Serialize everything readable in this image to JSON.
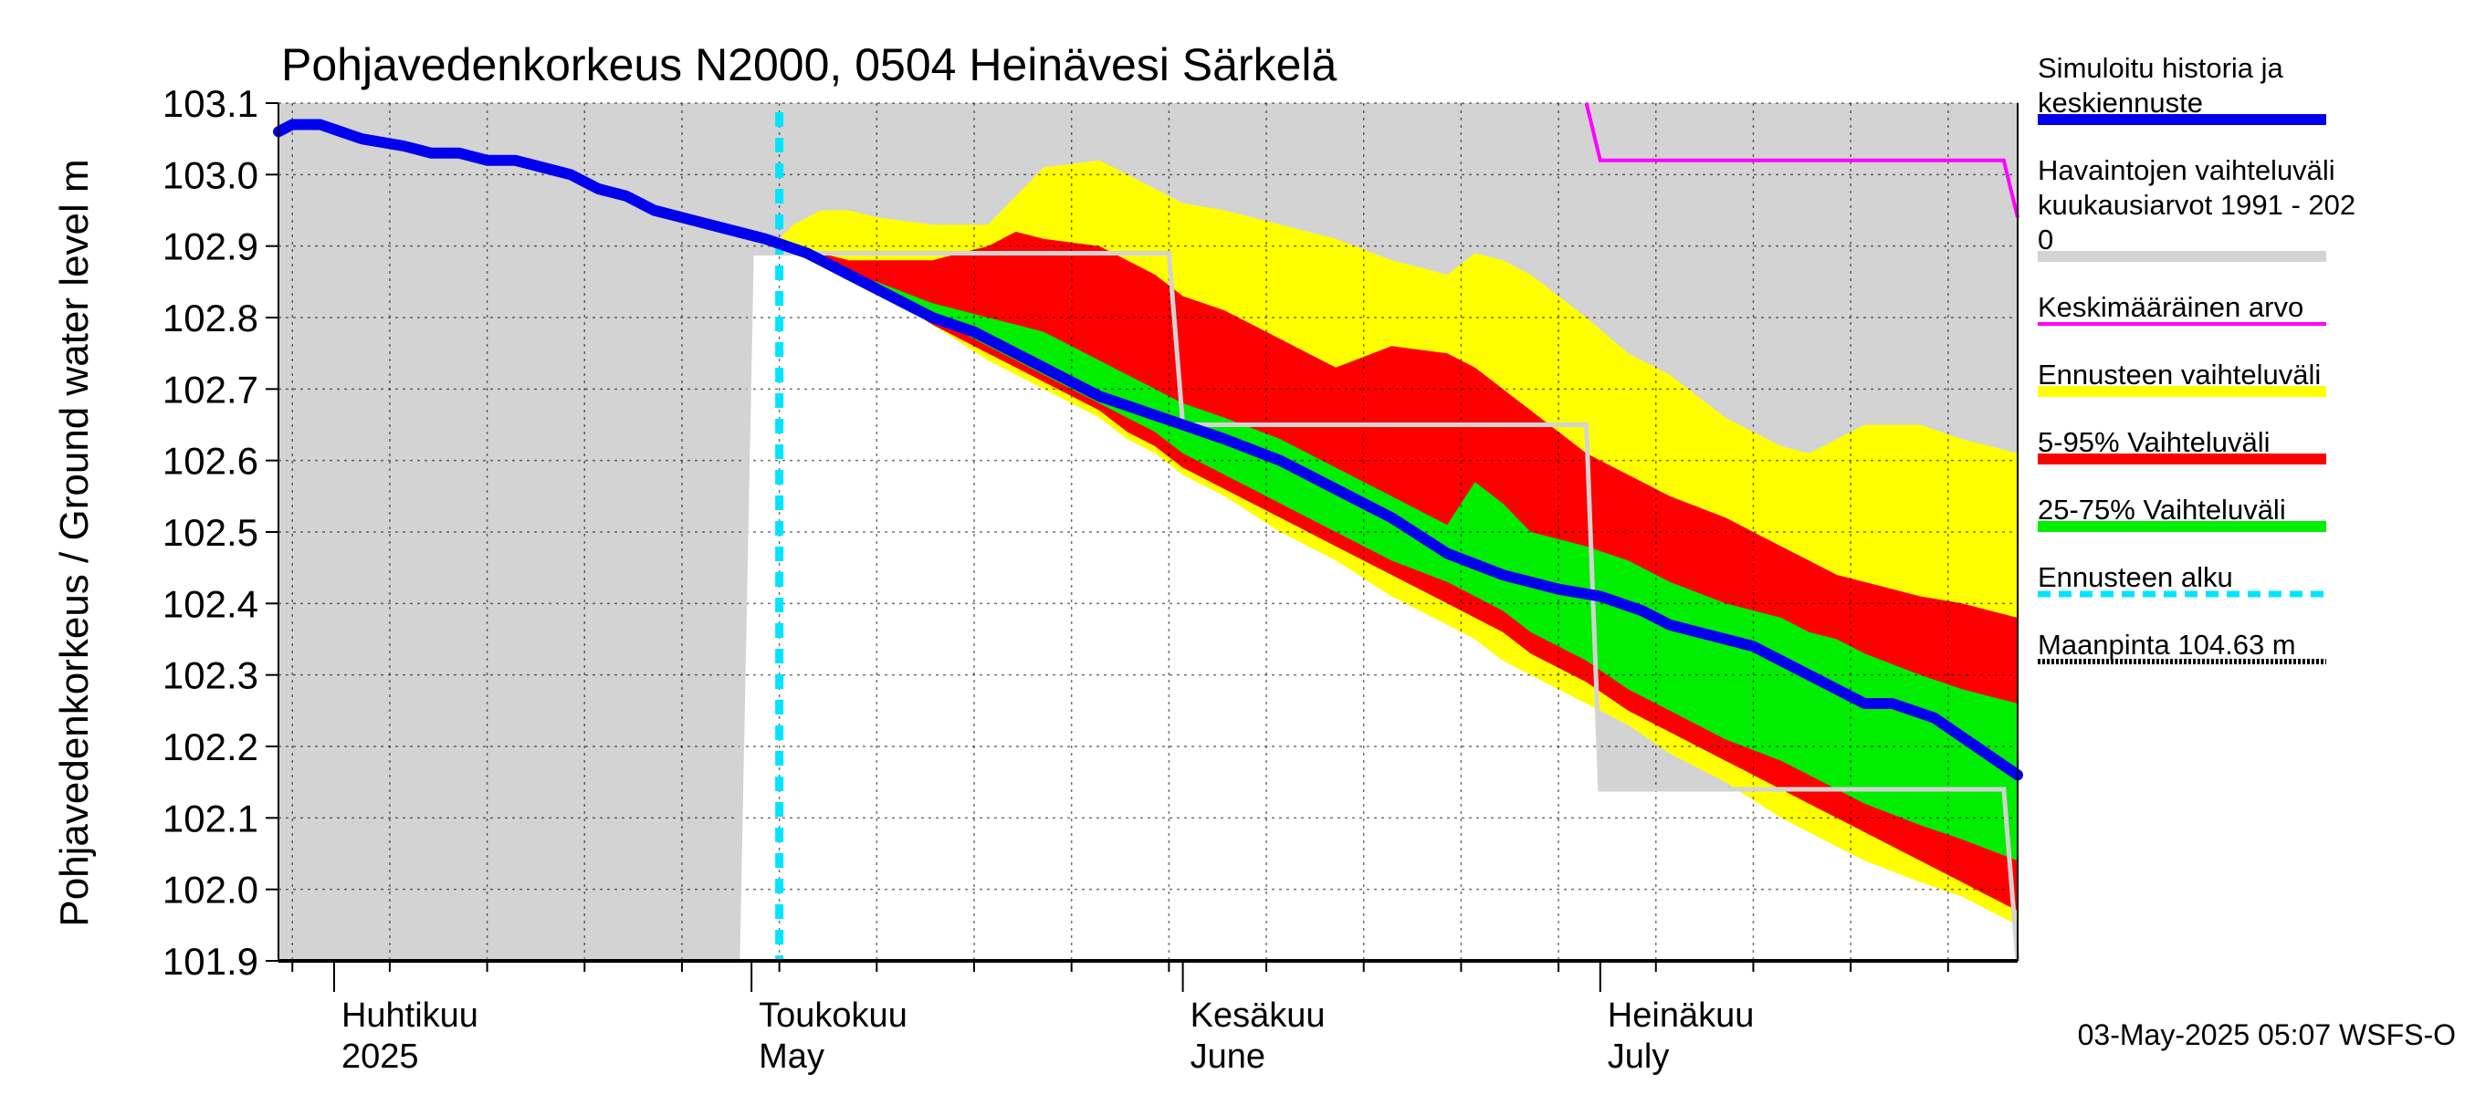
{
  "chart_data": {
    "type": "area",
    "title": "Pohjavedenkorkeus N2000, 0504 Heinävesi Särkelä",
    "ylabel": "Pohjavedenkorkeus / Ground water level   m",
    "ylim": [
      101.9,
      103.1
    ],
    "y_ticks": [
      "103.1",
      "103.0",
      "102.9",
      "102.8",
      "102.7",
      "102.6",
      "102.5",
      "102.4",
      "102.3",
      "102.2",
      "102.1",
      "102.0",
      "101.9"
    ],
    "x_range": [
      "2025-03-28",
      "2025-07-31"
    ],
    "grid": true,
    "month_labels": [
      {
        "date": "2025-04-01",
        "fi": "Huhtikuu",
        "en": "2025"
      },
      {
        "date": "2025-05-01",
        "fi": "Toukokuu",
        "en": "May"
      },
      {
        "date": "2025-06-01",
        "fi": "Kesäkuu",
        "en": "June"
      },
      {
        "date": "2025-07-01",
        "fi": "Heinäkuu",
        "en": "July"
      }
    ],
    "forecast_start": "2025-05-03",
    "colors": {
      "history": "#d3d3d3",
      "mean": "#ff00ff",
      "forecast_range": "#ffff00",
      "p5_95": "#ff0000",
      "p25_75": "#00ee00",
      "sim": "#0000ee",
      "forecast_start": "#00e5ff",
      "ground": "#000000"
    },
    "history_band": {
      "x": [
        "2025-03-28",
        "2025-04-30",
        "2025-05-01",
        "2025-05-31",
        "2025-06-01",
        "2025-06-30",
        "2025-07-01",
        "2025-07-30",
        "2025-07-31"
      ],
      "upper": [
        103.1,
        103.1,
        103.1,
        103.1,
        103.1,
        103.1,
        103.1,
        103.1,
        103.1
      ],
      "lower": [
        101.9,
        101.9,
        102.89,
        102.89,
        102.65,
        102.65,
        102.14,
        102.14,
        101.9
      ]
    },
    "mean_series": {
      "name": "Keskimääräinen arvo",
      "x": [
        "2025-06-30",
        "2025-07-01",
        "2025-07-30",
        "2025-07-31"
      ],
      "y": [
        103.1,
        103.02,
        103.02,
        102.94
      ]
    },
    "forecast_dates": [
      "2025-05-03",
      "2025-05-04",
      "2025-05-06",
      "2025-05-08",
      "2025-05-10",
      "2025-05-14",
      "2025-05-18",
      "2025-05-20",
      "2025-05-22",
      "2025-05-26",
      "2025-05-28",
      "2025-05-30",
      "2025-06-01",
      "2025-06-04",
      "2025-06-08",
      "2025-06-12",
      "2025-06-16",
      "2025-06-20",
      "2025-06-22",
      "2025-06-24",
      "2025-06-26",
      "2025-06-30",
      "2025-07-03",
      "2025-07-06",
      "2025-07-10",
      "2025-07-14",
      "2025-07-16",
      "2025-07-18",
      "2025-07-20",
      "2025-07-24",
      "2025-07-27",
      "2025-07-31"
    ],
    "forecast_range": {
      "name": "Ennusteen vaihteluväli",
      "upper": [
        102.91,
        102.93,
        102.95,
        102.95,
        102.94,
        102.93,
        102.93,
        102.97,
        103.01,
        103.02,
        103.0,
        102.98,
        102.96,
        102.95,
        102.93,
        102.91,
        102.88,
        102.86,
        102.89,
        102.88,
        102.86,
        102.8,
        102.75,
        102.72,
        102.66,
        102.62,
        102.61,
        102.63,
        102.65,
        102.65,
        102.63,
        102.61
      ],
      "lower": [
        102.91,
        102.9,
        102.88,
        102.86,
        102.84,
        102.79,
        102.74,
        102.72,
        102.7,
        102.66,
        102.63,
        102.61,
        102.58,
        102.55,
        102.5,
        102.46,
        102.41,
        102.37,
        102.35,
        102.32,
        102.3,
        102.26,
        102.23,
        102.19,
        102.15,
        102.1,
        102.08,
        102.06,
        102.04,
        102.01,
        101.99,
        101.95
      ]
    },
    "p5_95": {
      "name": "5-95% Vaihteluväli",
      "upper": [
        102.91,
        102.9,
        102.89,
        102.88,
        102.88,
        102.88,
        102.9,
        102.92,
        102.91,
        102.9,
        102.88,
        102.86,
        102.83,
        102.81,
        102.77,
        102.73,
        102.76,
        102.75,
        102.73,
        102.7,
        102.67,
        102.61,
        102.58,
        102.55,
        102.52,
        102.48,
        102.46,
        102.44,
        102.43,
        102.41,
        102.4,
        102.38
      ],
      "lower": [
        102.91,
        102.9,
        102.88,
        102.86,
        102.84,
        102.79,
        102.75,
        102.73,
        102.71,
        102.67,
        102.64,
        102.62,
        102.59,
        102.56,
        102.52,
        102.48,
        102.44,
        102.4,
        102.38,
        102.36,
        102.33,
        102.29,
        102.25,
        102.22,
        102.18,
        102.14,
        102.12,
        102.1,
        102.08,
        102.04,
        102.01,
        101.97
      ]
    },
    "p25_75": {
      "name": "25-75% Vaihteluväli",
      "upper": [
        102.91,
        102.9,
        102.88,
        102.86,
        102.85,
        102.82,
        102.8,
        102.79,
        102.78,
        102.74,
        102.72,
        102.7,
        102.68,
        102.66,
        102.63,
        102.59,
        102.55,
        102.51,
        102.57,
        102.54,
        102.5,
        102.48,
        102.46,
        102.43,
        102.4,
        102.38,
        102.36,
        102.35,
        102.33,
        102.3,
        102.28,
        102.26
      ],
      "lower": [
        102.91,
        102.9,
        102.88,
        102.86,
        102.84,
        102.8,
        102.76,
        102.74,
        102.72,
        102.68,
        102.66,
        102.64,
        102.61,
        102.58,
        102.54,
        102.5,
        102.46,
        102.43,
        102.41,
        102.39,
        102.36,
        102.32,
        102.28,
        102.25,
        102.21,
        102.18,
        102.16,
        102.14,
        102.12,
        102.09,
        102.07,
        102.04
      ]
    },
    "simulated": {
      "name": "Simuloitu historia ja keskiennuste",
      "x": [
        "2025-03-28",
        "2025-03-29",
        "2025-03-31",
        "2025-04-03",
        "2025-04-06",
        "2025-04-08",
        "2025-04-10",
        "2025-04-12",
        "2025-04-14",
        "2025-04-16",
        "2025-04-18",
        "2025-04-20",
        "2025-04-22",
        "2025-04-24",
        "2025-04-26",
        "2025-04-28",
        "2025-04-30",
        "2025-05-02",
        "2025-05-05",
        "2025-05-08",
        "2025-05-11",
        "2025-05-14",
        "2025-05-17",
        "2025-05-20",
        "2025-05-23",
        "2025-05-26",
        "2025-05-29",
        "2025-06-01",
        "2025-06-04",
        "2025-06-08",
        "2025-06-12",
        "2025-06-16",
        "2025-06-20",
        "2025-06-24",
        "2025-06-28",
        "2025-07-01",
        "2025-07-04",
        "2025-07-06",
        "2025-07-08",
        "2025-07-12",
        "2025-07-16",
        "2025-07-18",
        "2025-07-20",
        "2025-07-22",
        "2025-07-25",
        "2025-07-28",
        "2025-07-31"
      ],
      "y": [
        103.06,
        103.07,
        103.07,
        103.05,
        103.04,
        103.03,
        103.03,
        103.02,
        103.02,
        103.01,
        103.0,
        102.98,
        102.97,
        102.95,
        102.94,
        102.93,
        102.92,
        102.91,
        102.89,
        102.86,
        102.83,
        102.8,
        102.78,
        102.75,
        102.72,
        102.69,
        102.67,
        102.65,
        102.63,
        102.6,
        102.56,
        102.52,
        102.47,
        102.44,
        102.42,
        102.41,
        102.39,
        102.37,
        102.36,
        102.34,
        102.3,
        102.28,
        102.26,
        102.26,
        102.24,
        102.2,
        102.16
      ]
    },
    "legend": [
      {
        "key": "sim",
        "label": "Simuloitu historia ja keskiennuste",
        "lines": [
          "Simuloitu historia ja",
          "keskiennuste"
        ]
      },
      {
        "key": "history",
        "label": "Havaintojen vaihteluväli kuukausiarvot 1991 - 2020",
        "lines": [
          "Havaintojen vaihteluväli",
          " kuukausiarvot 1991 - 202",
          "0"
        ]
      },
      {
        "key": "mean",
        "label": "Keskimääräinen arvo",
        "lines": [
          "Keskimääräinen arvo"
        ]
      },
      {
        "key": "forecast_range",
        "label": "Ennusteen vaihteluväli",
        "lines": [
          "Ennusteen vaihteluväli"
        ]
      },
      {
        "key": "p5_95",
        "label": "5-95% Vaihteluväli",
        "lines": [
          "5-95% Vaihteluväli"
        ]
      },
      {
        "key": "p25_75",
        "label": "25-75% Vaihteluväli",
        "lines": [
          "25-75% Vaihteluväli"
        ]
      },
      {
        "key": "forecast_start",
        "label": "Ennusteen alku",
        "lines": [
          "Ennusteen alku"
        ]
      },
      {
        "key": "ground",
        "label": "Maanpinta 104.63 m",
        "lines": [
          "Maanpinta 104.63 m"
        ]
      }
    ],
    "timestamp": "03-May-2025 05:07 WSFS-O"
  }
}
